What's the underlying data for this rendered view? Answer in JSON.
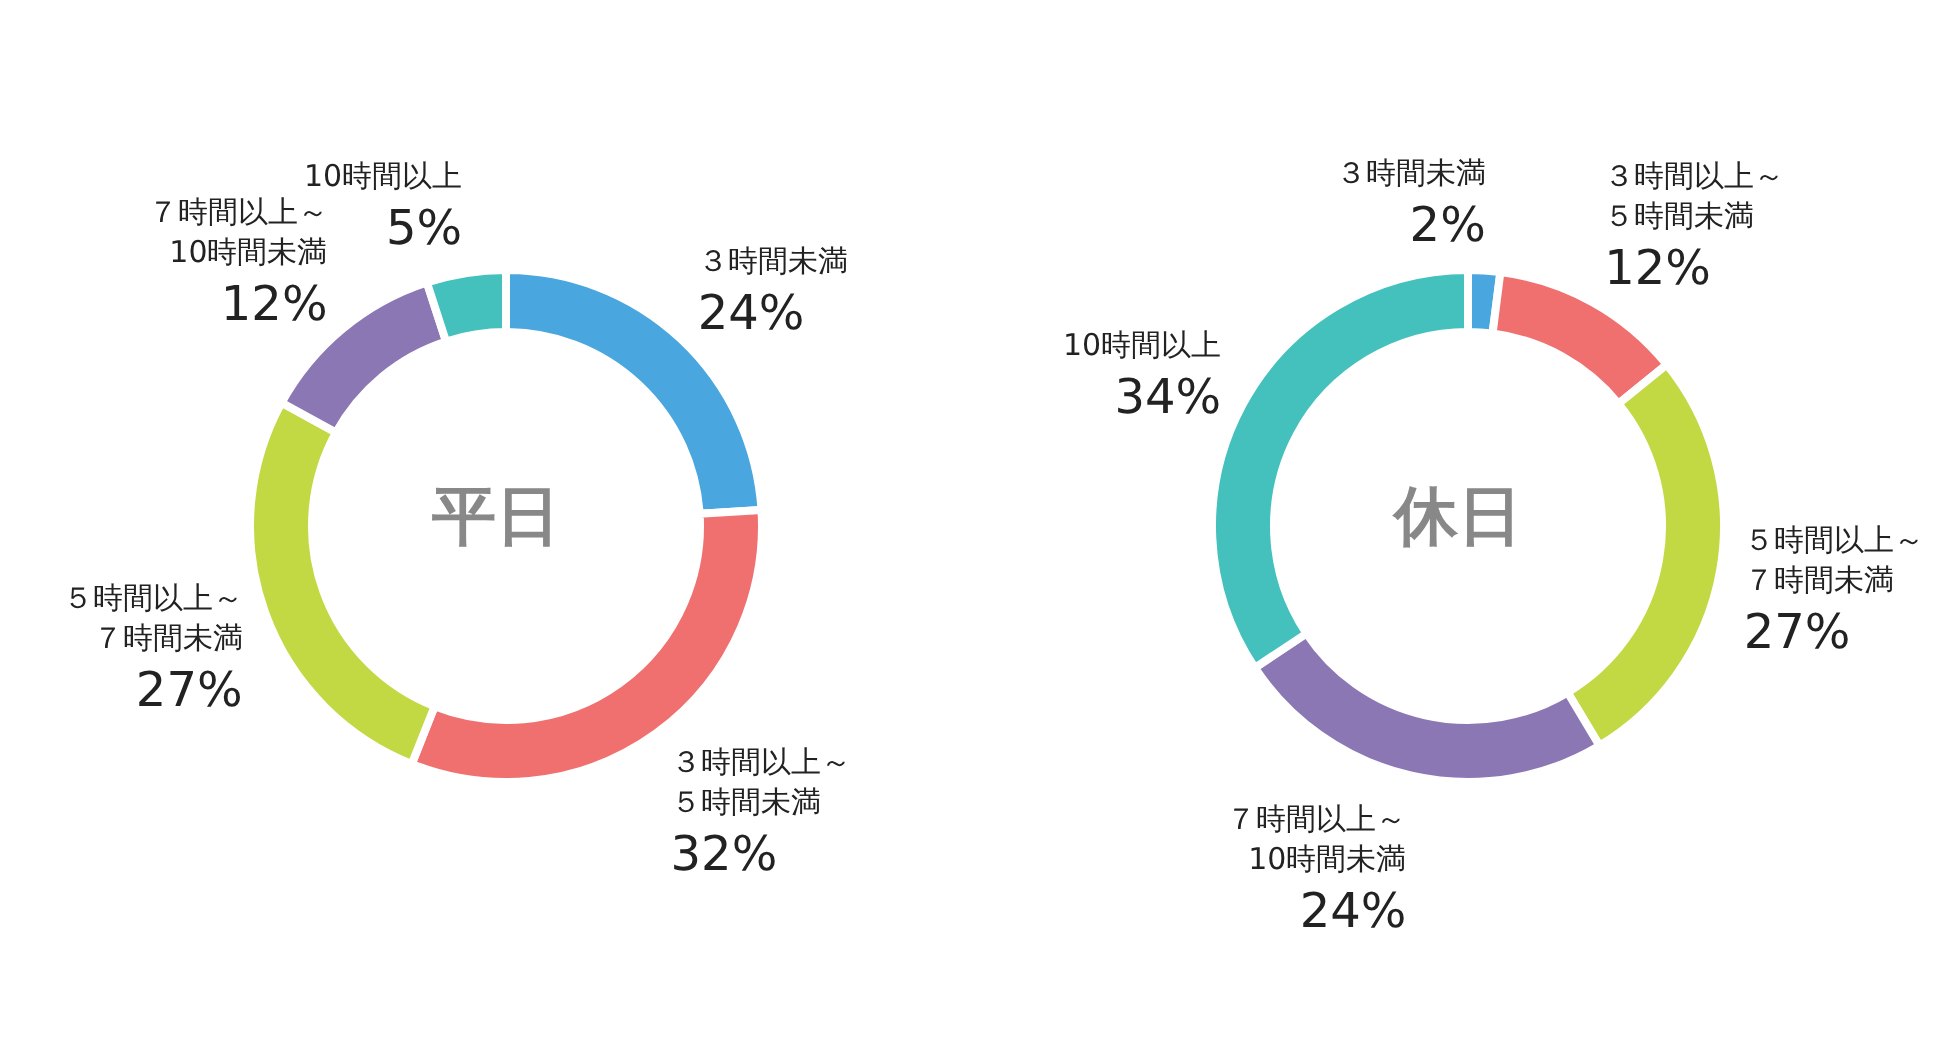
{
  "chart_data": [
    {
      "type": "donut",
      "title": "平日",
      "categories": [
        "３時間未満",
        "３時間以上～５時間未満",
        "５時間以上～７時間未満",
        "７時間以上～10時間未満",
        "10時間以上"
      ],
      "values": [
        24,
        32,
        27,
        12,
        5
      ],
      "value_labels": [
        "24%",
        "32%",
        "27%",
        "12%",
        "5%"
      ],
      "colors": [
        "#4aa6df",
        "#f07070",
        "#c2d944",
        "#8c77b5",
        "#44c1bd"
      ]
    },
    {
      "type": "donut",
      "title": "休日",
      "categories": [
        "３時間未満",
        "３時間以上～５時間未満",
        "５時間以上～７時間未満",
        "７時間以上～10時間未満",
        "10時間以上"
      ],
      "values": [
        2,
        12,
        27,
        24,
        34
      ],
      "value_labels": [
        "2%",
        "12%",
        "27%",
        "24%",
        "34%"
      ],
      "colors": [
        "#4aa6df",
        "#f07070",
        "#c2d944",
        "#8c77b5",
        "#44c1bd"
      ]
    }
  ]
}
